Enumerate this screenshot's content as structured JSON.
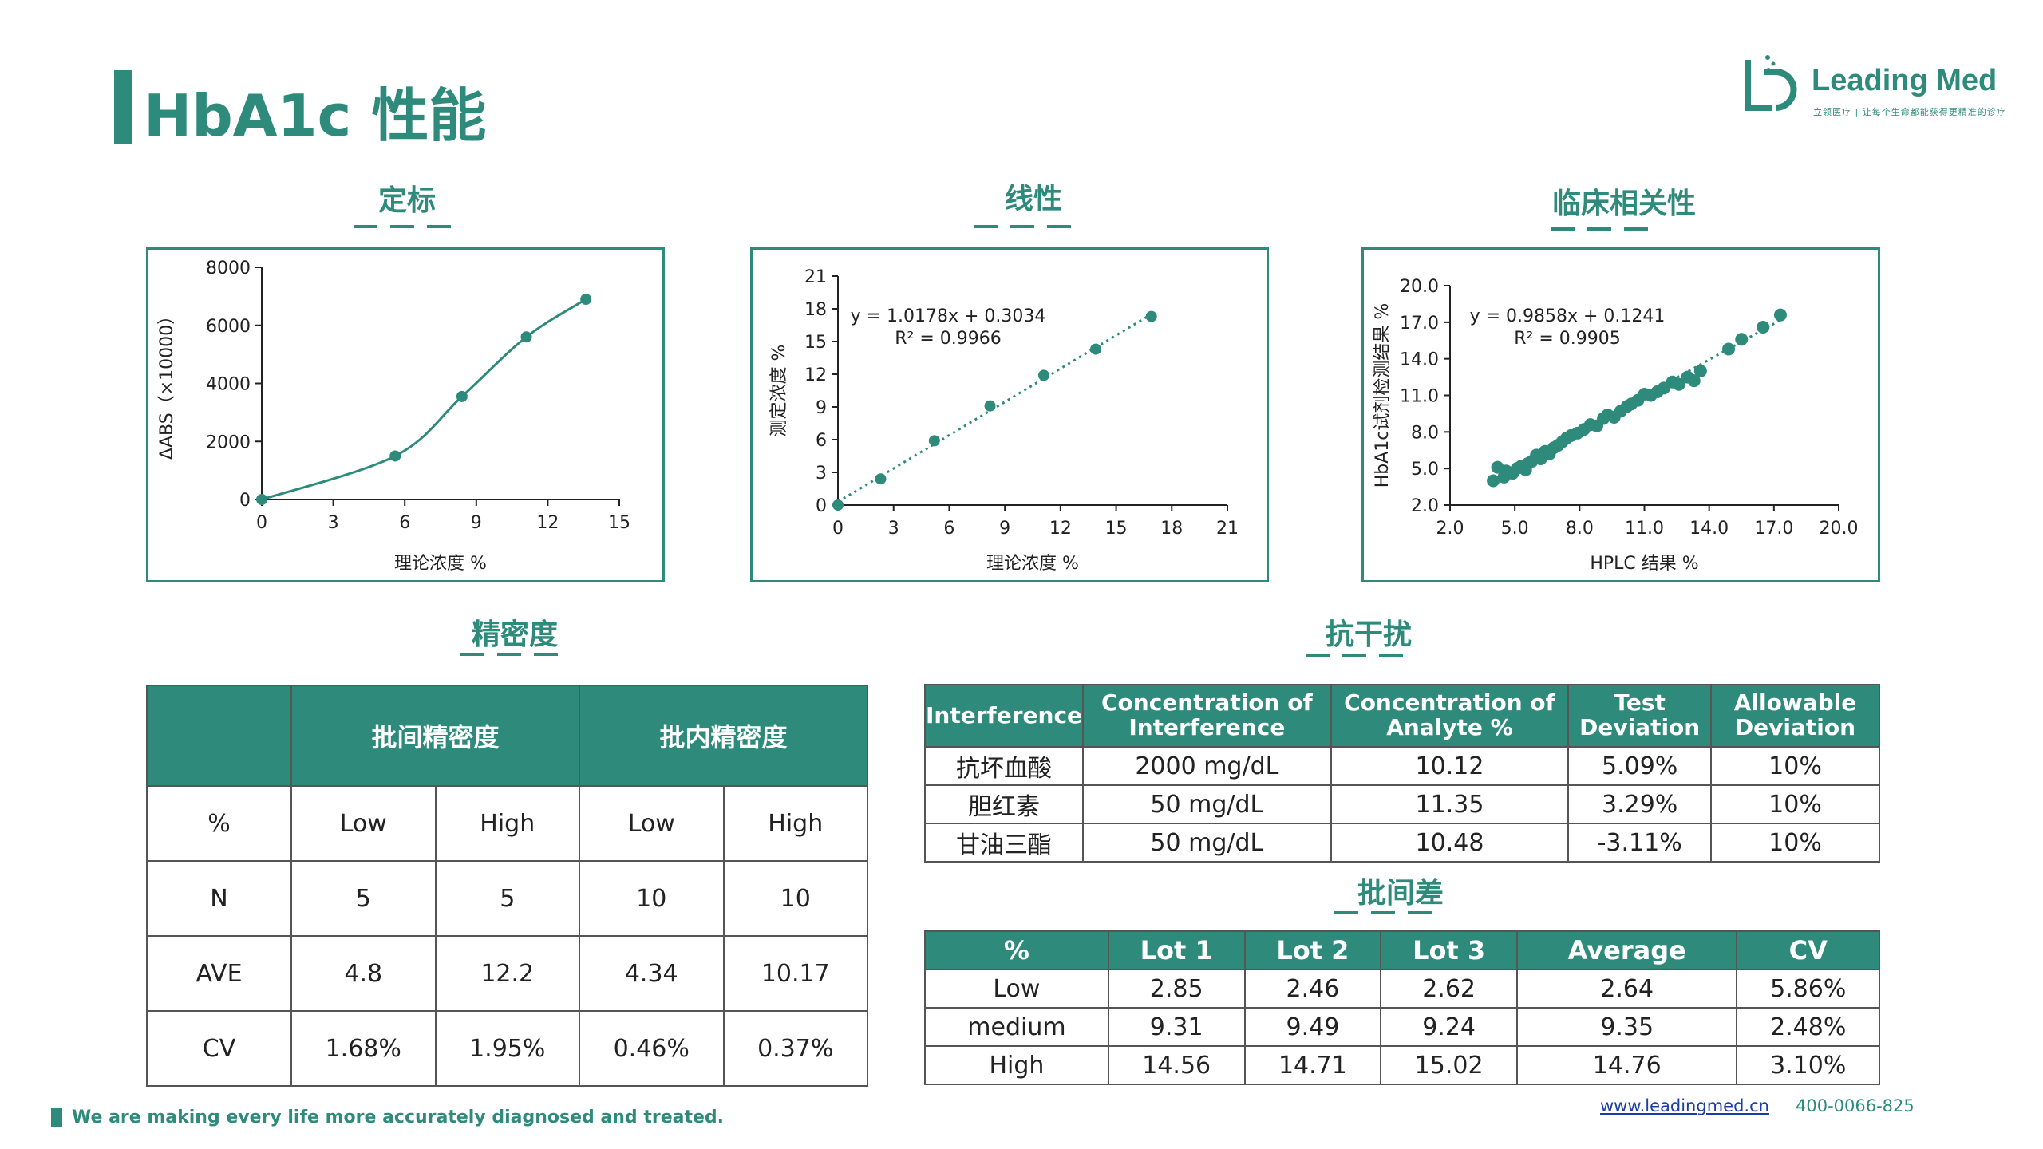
{
  "header": {
    "title": "HbA1c 性能",
    "logo_name": "Leading Med",
    "logo_sub": "立领医疗 | 让每个生命都能获得更精准的诊疗"
  },
  "sections": {
    "calibration": "定标",
    "linearity": "线性",
    "clinical": "临床相关性",
    "precision": "精密度",
    "interference": "抗干扰",
    "lot": "批间差"
  },
  "colors": {
    "accent": "#2e8b7b",
    "border": "#2e8b7b"
  },
  "chart_data": [
    {
      "type": "line",
      "xlabel": "理论浓度 %",
      "ylabel": "ΔABS（×10000）",
      "xlim": [
        0,
        15
      ],
      "ylim": [
        0,
        8000
      ],
      "xticks": [
        "0",
        "3",
        "6",
        "9",
        "12",
        "15"
      ],
      "yticks": [
        "0",
        "2000",
        "4000",
        "6000",
        "8000"
      ],
      "x": [
        0,
        5.6,
        8.4,
        11.1,
        13.6
      ],
      "y": [
        0,
        1500,
        3550,
        5600,
        6900
      ]
    },
    {
      "type": "scatter",
      "xlabel": "理论浓度 %",
      "ylabel": "测定浓度 %",
      "xlim": [
        0,
        21
      ],
      "ylim": [
        0,
        21
      ],
      "xticks": [
        "0",
        "3",
        "6",
        "9",
        "12",
        "15",
        "18",
        "21"
      ],
      "yticks": [
        "0",
        "3",
        "6",
        "9",
        "12",
        "15",
        "18",
        "21"
      ],
      "equation": "y = 1.0178x + 0.3034",
      "r2": "R² = 0.9966",
      "x": [
        0,
        2.3,
        5.2,
        8.2,
        11.1,
        13.9,
        16.9
      ],
      "y": [
        0,
        2.4,
        5.9,
        9.1,
        11.9,
        14.3,
        17.3
      ]
    },
    {
      "type": "scatter",
      "xlabel": "HPLC 结果 %",
      "ylabel": "HbA1c试剂检测结果 %",
      "xlim": [
        2,
        20
      ],
      "ylim": [
        2,
        20
      ],
      "xticks": [
        "2.0",
        "5.0",
        "8.0",
        "11.0",
        "14.0",
        "17.0",
        "20.0"
      ],
      "yticks": [
        "2.0",
        "5.0",
        "8.0",
        "11.0",
        "14.0",
        "17.0",
        "20.0"
      ],
      "equation": "y = 0.9858x + 0.1241",
      "r2": "R² = 0.9905",
      "x": [
        4.0,
        4.2,
        4.5,
        4.6,
        4.9,
        5.1,
        5.3,
        5.5,
        5.6,
        5.8,
        6.0,
        6.2,
        6.4,
        6.6,
        6.8,
        7.0,
        7.2,
        7.4,
        7.6,
        7.9,
        8.2,
        8.5,
        8.8,
        9.1,
        9.3,
        9.6,
        9.9,
        10.2,
        10.4,
        10.7,
        11.0,
        11.3,
        11.6,
        11.9,
        12.3,
        12.6,
        13.0,
        13.3,
        13.6,
        14.9,
        15.5,
        16.5,
        17.3
      ],
      "y": [
        4.0,
        5.1,
        4.3,
        4.8,
        4.6,
        5.0,
        5.2,
        4.9,
        5.4,
        5.6,
        6.1,
        5.8,
        6.4,
        6.2,
        6.7,
        6.9,
        7.2,
        7.5,
        7.7,
        7.9,
        8.2,
        8.6,
        8.5,
        9.1,
        9.4,
        9.2,
        9.7,
        10.1,
        10.3,
        10.6,
        11.1,
        11.0,
        11.3,
        11.6,
        12.1,
        11.9,
        12.5,
        12.2,
        13.0,
        14.8,
        15.6,
        16.6,
        17.6
      ]
    }
  ],
  "precision": {
    "header_between": "批间精密度",
    "header_within": "批内精密度",
    "rows": [
      [
        "%",
        "Low",
        "High",
        "Low",
        "High"
      ],
      [
        "N",
        "5",
        "5",
        "10",
        "10"
      ],
      [
        "AVE",
        "4.8",
        "12.2",
        "4.34",
        "10.17"
      ],
      [
        "CV",
        "1.68%",
        "1.95%",
        "0.46%",
        "0.37%"
      ]
    ]
  },
  "interference": {
    "headers": [
      "Interference",
      "Concentration of Interference",
      "Concentration of Analyte %",
      "Test Deviation",
      "Allowable Deviation"
    ],
    "rows": [
      [
        "抗坏血酸",
        "2000 mg/dL",
        "10.12",
        "5.09%",
        "10%"
      ],
      [
        "胆红素",
        "50 mg/dL",
        "11.35",
        "3.29%",
        "10%"
      ],
      [
        "甘油三酯",
        "50 mg/dL",
        "10.48",
        "-3.11%",
        "10%"
      ]
    ]
  },
  "lot": {
    "headers": [
      "%",
      "Lot 1",
      "Lot 2",
      "Lot 3",
      "Average",
      "CV"
    ],
    "rows": [
      [
        "Low",
        "2.85",
        "2.46",
        "2.62",
        "2.64",
        "5.86%"
      ],
      [
        "medium",
        "9.31",
        "9.49",
        "9.24",
        "9.35",
        "2.48%"
      ],
      [
        "High",
        "14.56",
        "14.71",
        "15.02",
        "14.76",
        "3.10%"
      ]
    ]
  },
  "footer": {
    "slogan": "We are making every life more accurately diagnosed and treated.",
    "url": "www.leadingmed.cn",
    "phone": "400-0066-825"
  }
}
